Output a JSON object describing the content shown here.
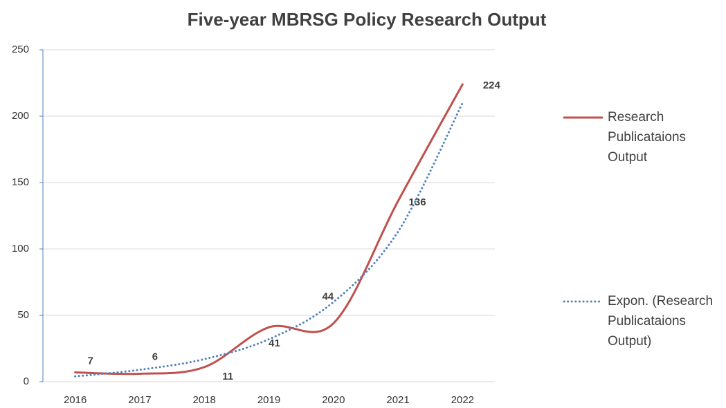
{
  "chart_data": {
    "type": "line",
    "title": "Five-year MBRSG Policy Research Output",
    "categories": [
      "2016",
      "2017",
      "2018",
      "2019",
      "2020",
      "2021",
      "2022"
    ],
    "series": [
      {
        "name": "Research Publicataions Output",
        "color": "#c0504d",
        "style": "solid",
        "smooth": true,
        "values": [
          7,
          6,
          11,
          41,
          44,
          136,
          224
        ],
        "data_labels": true
      },
      {
        "name": "Expon. (Research Publicataions Output)",
        "color": "#4f81bd",
        "style": "dotted",
        "smooth": true,
        "values": [
          4,
          9,
          17,
          32,
          60,
          113,
          210
        ]
      }
    ],
    "ylim": [
      0,
      250
    ],
    "yticks": [
      0,
      50,
      100,
      150,
      200,
      250
    ],
    "grid": true,
    "legend": "right"
  }
}
